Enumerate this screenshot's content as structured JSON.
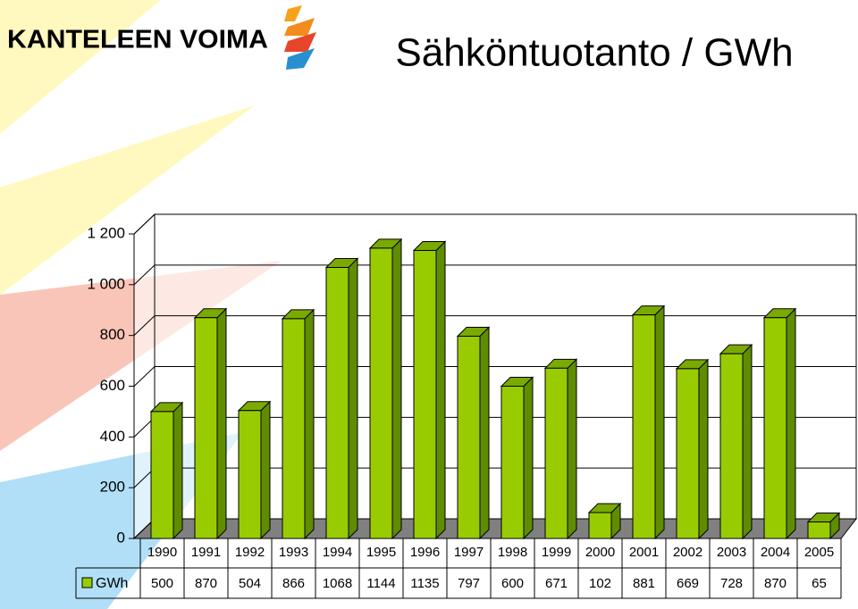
{
  "logo": "KANTELEEN VOIMA",
  "chart_data": {
    "type": "bar3d",
    "title": "Sähköntuotanto / GWh",
    "categories": [
      "1990",
      "1991",
      "1992",
      "1993",
      "1994",
      "1995",
      "1996",
      "1997",
      "1998",
      "1999",
      "2000",
      "2001",
      "2002",
      "2003",
      "2004",
      "2005"
    ],
    "series": [
      {
        "name": "GWh",
        "color": "#99cc00",
        "values": [
          500,
          870,
          504,
          866,
          1068,
          1144,
          1135,
          797,
          600,
          671,
          102,
          881,
          669,
          728,
          870,
          65
        ]
      }
    ],
    "ylim": [
      0,
      1200
    ],
    "yticks": [
      0,
      200,
      400,
      600,
      800,
      {
        "value": 1000,
        "label": "1 000"
      },
      {
        "value": 1200,
        "label": "1 200"
      }
    ],
    "grid": true
  }
}
